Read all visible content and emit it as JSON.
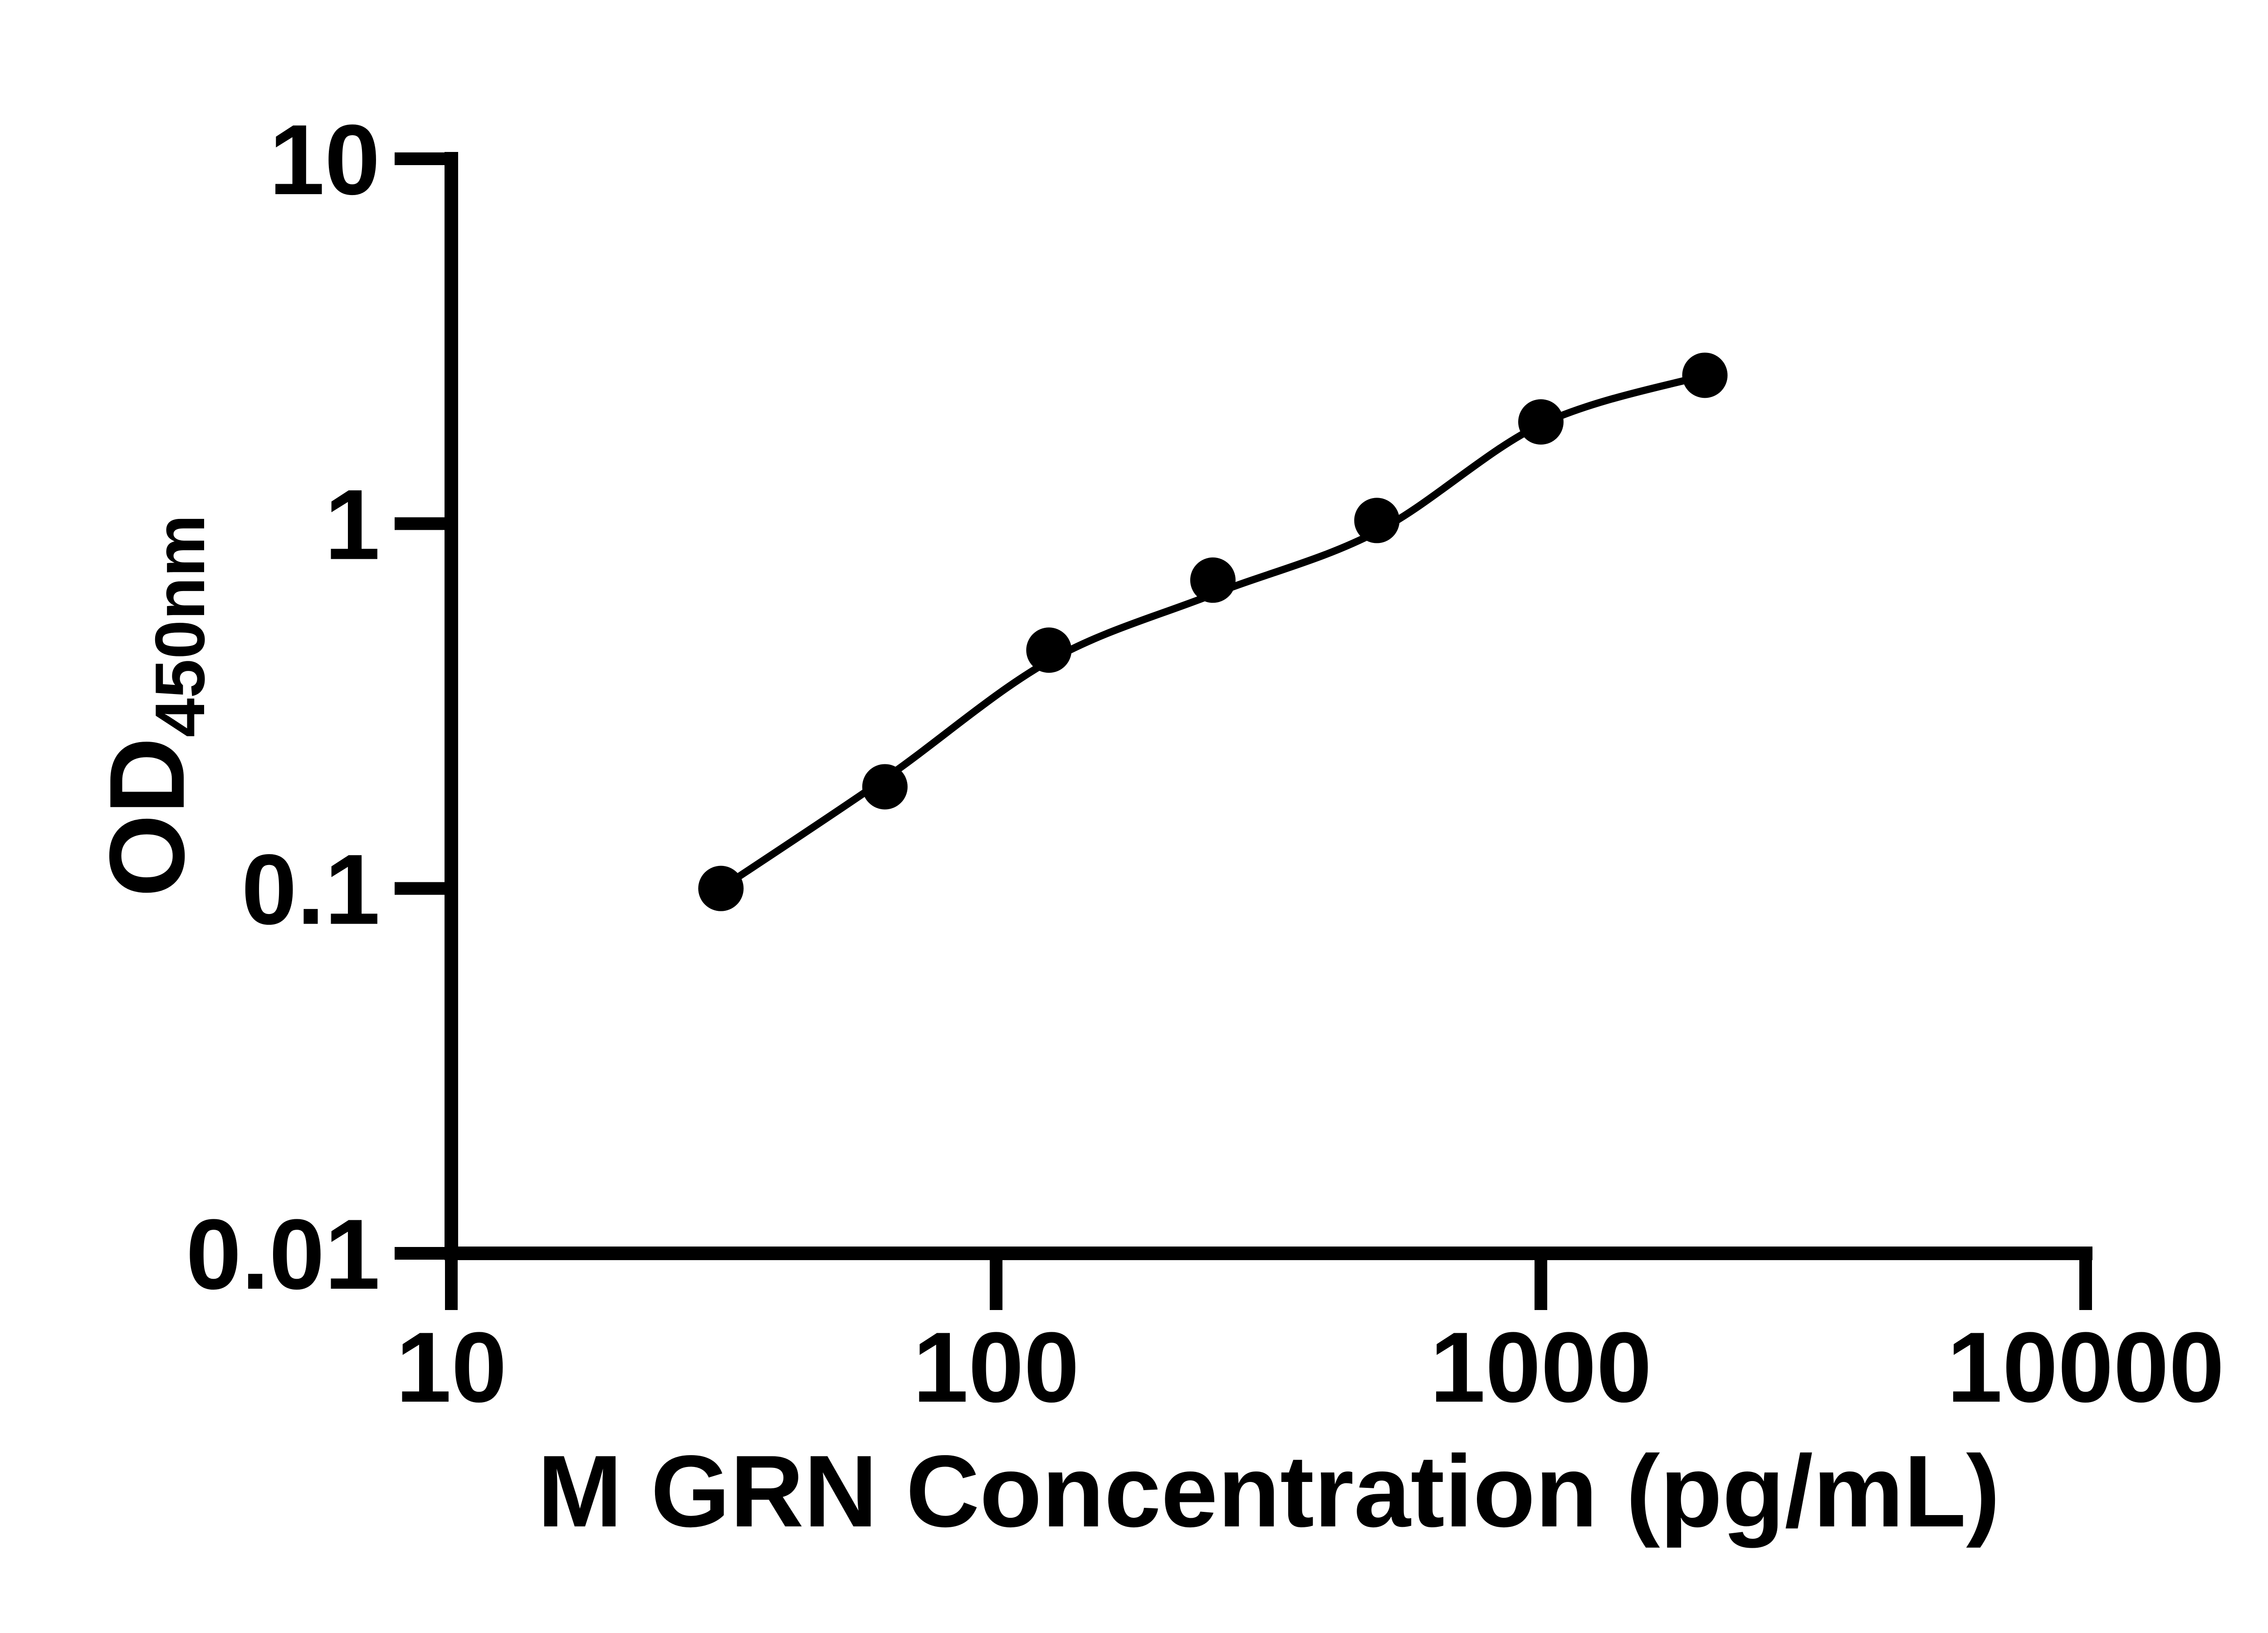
{
  "figure": {
    "description": "ELISA standard curve, black scatter points with fitted line on log-log axes, white background"
  },
  "chart_data": {
    "type": "scatter",
    "title": "",
    "xlabel": "M GRN Concentration (pg/mL)",
    "ylabel_main": "OD",
    "ylabel_sub": "450nm",
    "x_scale": "log",
    "y_scale": "log",
    "xlim": [
      10,
      10000
    ],
    "ylim": [
      0.01,
      10
    ],
    "x_tick_values": [
      10,
      100,
      1000,
      10000
    ],
    "x_tick_labels": [
      "10",
      "100",
      "1000",
      "10000"
    ],
    "y_tick_values": [
      10,
      1,
      0.1,
      0.01
    ],
    "y_tick_labels": [
      "10",
      "1",
      "0.1",
      "0.01"
    ],
    "grid": "off",
    "legend": "none",
    "points": [
      {
        "x": 31.25,
        "od": 0.1
      },
      {
        "x": 62.5,
        "od": 0.19
      },
      {
        "x": 125,
        "od": 0.45
      },
      {
        "x": 250,
        "od": 0.7
      },
      {
        "x": 500,
        "od": 1.02
      },
      {
        "x": 1000,
        "od": 1.9
      },
      {
        "x": 2000,
        "od": 2.55
      }
    ],
    "curve_od": [
      0.1,
      0.2,
      0.42,
      0.64,
      0.95,
      1.87,
      2.55
    ],
    "colors": {
      "background": "#ffffff",
      "axis": "#000000",
      "curve": "#000000",
      "marker": "#000000",
      "text": "#000000"
    }
  }
}
